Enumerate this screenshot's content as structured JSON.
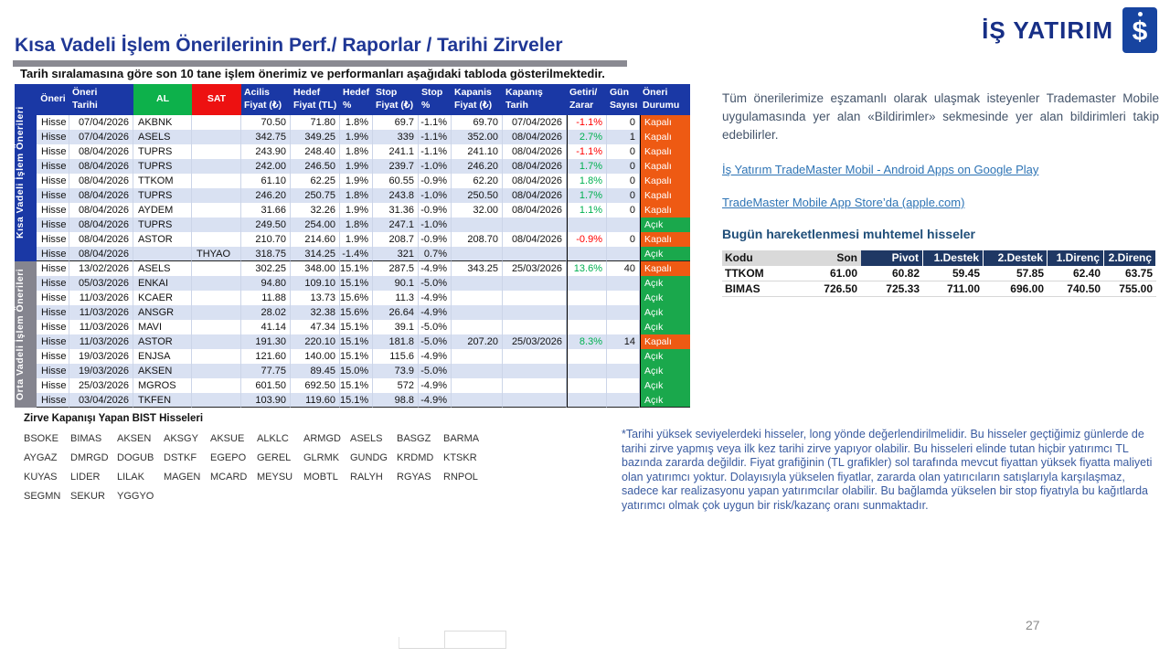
{
  "page": {
    "number": "27"
  },
  "header": {
    "title": "Kısa Vadeli İşlem Önerilerinin Perf./ Raporlar / Tarihi Zirveler",
    "subtitle": "Tarih sıralamasına göre son 10 tane işlem önerimiz ve performanları aşağıdaki tabloda gösterilmektedir.",
    "brand": "İŞ YATIRIM",
    "brand_monogram": "İŞ"
  },
  "main_table": {
    "section_labels": [
      "Kısa Vadeli İşlem Önerileri",
      "Orta Vadeli İşlem Önerileri"
    ],
    "columns": [
      {
        "l1": "Öneri",
        "l2": ""
      },
      {
        "l1": "Öneri",
        "l2": "Tarihi"
      },
      {
        "l1": "AL",
        "l2": ""
      },
      {
        "l1": "SAT",
        "l2": ""
      },
      {
        "l1": "Acilis",
        "l2": "Fiyat (₺)"
      },
      {
        "l1": "Hedef",
        "l2": "Fiyat (TL)"
      },
      {
        "l1": "Hedef",
        "l2": "%"
      },
      {
        "l1": "Stop",
        "l2": "Fiyat (₺)"
      },
      {
        "l1": "Stop",
        "l2": "%"
      },
      {
        "l1": "Kapanis",
        "l2": "Fiyat (₺)"
      },
      {
        "l1": "Kapanış",
        "l2": "Tarih"
      },
      {
        "l1": "Getiri/",
        "l2": "Zarar"
      },
      {
        "l1": "Gün",
        "l2": "Sayısı"
      },
      {
        "l1": "Öneri",
        "l2": "Durumu"
      }
    ],
    "rows": [
      {
        "section": 0,
        "cells": [
          "Hisse",
          "07/04/2026",
          "AKBNK",
          "",
          "70.50",
          "71.80",
          "1.8%",
          "69.7",
          "-1.1%",
          "69.70",
          "07/04/2026",
          "-1.1%",
          "0",
          "Kapalı"
        ]
      },
      {
        "section": 0,
        "cells": [
          "Hisse",
          "07/04/2026",
          "ASELS",
          "",
          "342.75",
          "349.25",
          "1.9%",
          "339",
          "-1.1%",
          "352.00",
          "08/04/2026",
          "2.7%",
          "1",
          "Kapalı"
        ]
      },
      {
        "section": 0,
        "cells": [
          "Hisse",
          "08/04/2026",
          "TUPRS",
          "",
          "243.90",
          "248.40",
          "1.8%",
          "241.1",
          "-1.1%",
          "241.10",
          "08/04/2026",
          "-1.1%",
          "0",
          "Kapalı"
        ]
      },
      {
        "section": 0,
        "cells": [
          "Hisse",
          "08/04/2026",
          "TUPRS",
          "",
          "242.00",
          "246.50",
          "1.9%",
          "239.7",
          "-1.0%",
          "246.20",
          "08/04/2026",
          "1.7%",
          "0",
          "Kapalı"
        ]
      },
      {
        "section": 0,
        "cells": [
          "Hisse",
          "08/04/2026",
          "TTKOM",
          "",
          "61.10",
          "62.25",
          "1.9%",
          "60.55",
          "-0.9%",
          "62.20",
          "08/04/2026",
          "1.8%",
          "0",
          "Kapalı"
        ]
      },
      {
        "section": 0,
        "cells": [
          "Hisse",
          "08/04/2026",
          "TUPRS",
          "",
          "246.20",
          "250.75",
          "1.8%",
          "243.8",
          "-1.0%",
          "250.50",
          "08/04/2026",
          "1.7%",
          "0",
          "Kapalı"
        ]
      },
      {
        "section": 0,
        "cells": [
          "Hisse",
          "08/04/2026",
          "AYDEM",
          "",
          "31.66",
          "32.26",
          "1.9%",
          "31.36",
          "-0.9%",
          "32.00",
          "08/04/2026",
          "1.1%",
          "0",
          "Kapalı"
        ]
      },
      {
        "section": 0,
        "cells": [
          "Hisse",
          "08/04/2026",
          "TUPRS",
          "",
          "249.50",
          "254.00",
          "1.8%",
          "247.1",
          "-1.0%",
          "",
          "",
          "",
          "",
          "Açık"
        ]
      },
      {
        "section": 0,
        "cells": [
          "Hisse",
          "08/04/2026",
          "ASTOR",
          "",
          "210.70",
          "214.60",
          "1.9%",
          "208.7",
          "-0.9%",
          "208.70",
          "08/04/2026",
          "-0.9%",
          "0",
          "Kapalı"
        ]
      },
      {
        "section": 0,
        "cells": [
          "Hisse",
          "08/04/2026",
          "",
          "THYAO",
          "318.75",
          "314.25",
          "-1.4%",
          "321",
          "0.7%",
          "",
          "",
          "",
          "",
          "Açık"
        ]
      },
      {
        "section": 1,
        "cells": [
          "Hisse",
          "13/02/2026",
          "ASELS",
          "",
          "302.25",
          "348.00",
          "15.1%",
          "287.5",
          "-4.9%",
          "343.25",
          "25/03/2026",
          "13.6%",
          "40",
          "Kapalı"
        ]
      },
      {
        "section": 1,
        "cells": [
          "Hisse",
          "05/03/2026",
          "ENKAI",
          "",
          "94.80",
          "109.10",
          "15.1%",
          "90.1",
          "-5.0%",
          "",
          "",
          "",
          "",
          "Açık"
        ]
      },
      {
        "section": 1,
        "cells": [
          "Hisse",
          "11/03/2026",
          "KCAER",
          "",
          "11.88",
          "13.73",
          "15.6%",
          "11.3",
          "-4.9%",
          "",
          "",
          "",
          "",
          "Açık"
        ]
      },
      {
        "section": 1,
        "cells": [
          "Hisse",
          "11/03/2026",
          "ANSGR",
          "",
          "28.02",
          "32.38",
          "15.6%",
          "26.64",
          "-4.9%",
          "",
          "",
          "",
          "",
          "Açık"
        ]
      },
      {
        "section": 1,
        "cells": [
          "Hisse",
          "11/03/2026",
          "MAVI",
          "",
          "41.14",
          "47.34",
          "15.1%",
          "39.1",
          "-5.0%",
          "",
          "",
          "",
          "",
          "Açık"
        ]
      },
      {
        "section": 1,
        "cells": [
          "Hisse",
          "11/03/2026",
          "ASTOR",
          "",
          "191.30",
          "220.10",
          "15.1%",
          "181.8",
          "-5.0%",
          "207.20",
          "25/03/2026",
          "8.3%",
          "14",
          "Kapalı"
        ]
      },
      {
        "section": 1,
        "cells": [
          "Hisse",
          "19/03/2026",
          "ENJSA",
          "",
          "121.60",
          "140.00",
          "15.1%",
          "115.6",
          "-4.9%",
          "",
          "",
          "",
          "",
          "Açık"
        ]
      },
      {
        "section": 1,
        "cells": [
          "Hisse",
          "19/03/2026",
          "AKSEN",
          "",
          "77.75",
          "89.45",
          "15.0%",
          "73.9",
          "-5.0%",
          "",
          "",
          "",
          "",
          "Açık"
        ]
      },
      {
        "section": 1,
        "cells": [
          "Hisse",
          "25/03/2026",
          "MGROS",
          "",
          "601.50",
          "692.50",
          "15.1%",
          "572",
          "-4.9%",
          "",
          "",
          "",
          "",
          "Açık"
        ]
      },
      {
        "section": 1,
        "cells": [
          "Hisse",
          "03/04/2026",
          "TKFEN",
          "",
          "103.90",
          "119.60",
          "15.1%",
          "98.8",
          "-4.9%",
          "",
          "",
          "",
          "",
          "Açık"
        ]
      }
    ],
    "status_values": {
      "closed": "Kapalı",
      "open": "Açık"
    }
  },
  "zirve": {
    "title": "Zirve Kapanışı Yapan BIST Hisseleri",
    "tickers": [
      "BSOKE",
      "BIMAS",
      "AKSEN",
      "AKSGY",
      "AKSUE",
      "ALKLC",
      "ARMGD",
      "ASELS",
      "BASGZ",
      "BARMA",
      "AYGAZ",
      "DMRGD",
      "DOGUB",
      "DSTKF",
      "EGEPO",
      "GEREL",
      "GLRMK",
      "GUNDG",
      "KRDMD",
      "KTSKR",
      "KUYAS",
      "LIDER",
      "LILAK",
      "MAGEN",
      "MCARD",
      "MEYSU",
      "MOBTL",
      "RALYH",
      "RGYAS",
      "RNPOL",
      "SEGMN",
      "SEKUR",
      "YGGYO"
    ]
  },
  "right": {
    "intro": "Tüm önerilerimize eşzamanlı olarak ulaşmak isteyenler Trademaster Mobile uygulamasında yer alan «Bildirimler» sekmesinde yer alan bildirimleri takip edebilirler.",
    "links": [
      "İş Yatırım TradeMaster Mobil - Android Apps on Google Play",
      "TradeMaster Mobile App Store’da (apple.com)"
    ],
    "pivot_title": "Bugün hareketlenmesi muhtemel hisseler",
    "pivot": {
      "headers": [
        "Kodu",
        "Son",
        "Pivot",
        "1.Destek",
        "2.Destek",
        "1.Direnç",
        "2.Direnç"
      ],
      "rows": [
        [
          "TTKOM",
          "61.00",
          "60.82",
          "59.45",
          "57.85",
          "62.40",
          "63.75"
        ],
        [
          "BIMAS",
          "726.50",
          "725.33",
          "711.00",
          "696.00",
          "740.50",
          "755.00"
        ]
      ]
    },
    "footnote": "*Tarihi yüksek seviyelerdeki hisseler, long yönde değerlendirilmelidir. Bu hisseler geçtiğimiz günlerde de tarihi zirve yapmış veya ilk kez tarihi zirve yapıyor olabilir. Bu hisseleri elinde tutan hiçbir yatırımcı TL bazında zararda değildir. Fiyat grafiğinin (TL grafikler) sol tarafında mevcut fiyattan yüksek fiyatta maliyeti olan yatırımcı yoktur. Dolayısıyla yükselen fiyatlar, zararda olan yatırıcıların satışlarıyla karşılaşmaz, sadece kar realizasyonu yapan yatırımcılar olabilir. Bu bağlamda yükselen bir stop fiyatıyla bu kağıtlarda yatırımcı olmak çok uygun bir risk/kazanç oranı sunmaktadır."
  },
  "colors": {
    "header_blue": "#1A38A5",
    "pivot_navy": "#1F3864",
    "sidebar_gray": "#85858F",
    "row_alt": "#D9E1F2",
    "status_open_green": "#1AA84C",
    "status_closed_orange": "#EE5A13",
    "al_green": "#0DB14B",
    "sat_red": "#ED1111",
    "gain_green": "#00B050",
    "loss_red": "#FF0000",
    "title_blue": "#1F3795",
    "link_blue": "#2E74B5"
  }
}
